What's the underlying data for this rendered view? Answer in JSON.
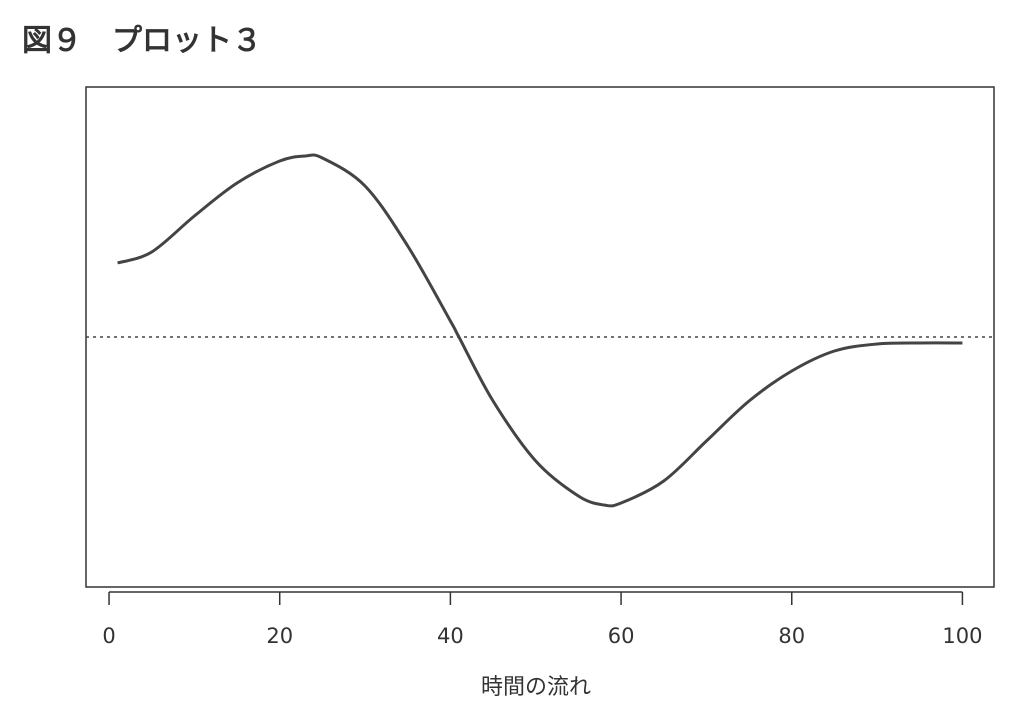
{
  "chart_data": {
    "type": "line",
    "title": "図９　プロット３",
    "x_label": "時間の流れ",
    "x": [
      1,
      5,
      10,
      15,
      20,
      23,
      25,
      30,
      35,
      40,
      41,
      45,
      50,
      55,
      58,
      60,
      65,
      70,
      75,
      80,
      85,
      90,
      95,
      100
    ],
    "series": [
      {
        "color": "#444444",
        "values": [
          0.74,
          0.85,
          1.21,
          1.54,
          1.76,
          1.81,
          1.79,
          1.51,
          0.91,
          0.16,
          0.0,
          -0.64,
          -1.24,
          -1.59,
          -1.68,
          -1.66,
          -1.44,
          -1.04,
          -0.64,
          -0.34,
          -0.14,
          -0.07,
          -0.06,
          -0.06
        ]
      }
    ],
    "reference_line": 0,
    "xlim": [
      -2.7,
      103.7
    ],
    "xticks": [
      0,
      20,
      40,
      60,
      80,
      100
    ],
    "ylim": [
      -2.5,
      2.5
    ]
  }
}
